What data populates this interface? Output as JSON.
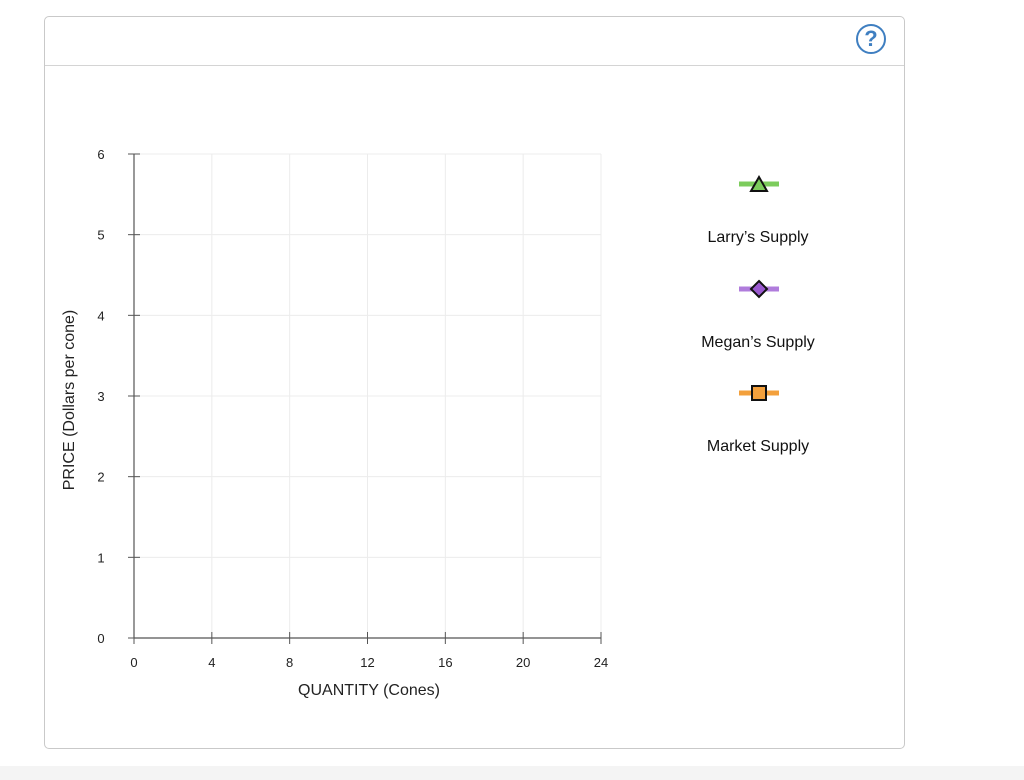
{
  "help_button": {
    "label": "?",
    "icon": "help-icon"
  },
  "chart_data": {
    "type": "line",
    "xlabel": "QUANTITY (Cones)",
    "ylabel": "PRICE (Dollars per cone)",
    "xlim": [
      0,
      24
    ],
    "ylim": [
      0,
      6
    ],
    "x_ticks": [
      0,
      4,
      8,
      12,
      16,
      20,
      24
    ],
    "y_ticks": [
      0,
      1,
      2,
      3,
      4,
      5,
      6
    ],
    "grid": true,
    "series": []
  },
  "legend": {
    "items": [
      {
        "name": "Larry’s Supply",
        "marker": "triangle",
        "line_color": "#7ccc5c",
        "marker_fill": "#7ccc5c",
        "icon": "triangle-marker-icon"
      },
      {
        "name": "Megan’s Supply",
        "marker": "diamond",
        "line_color": "#b07cdc",
        "marker_fill": "#9b59d0",
        "icon": "diamond-marker-icon"
      },
      {
        "name": "Market Supply",
        "marker": "square",
        "line_color": "#f3a03c",
        "marker_fill": "#f3a03c",
        "icon": "square-marker-icon"
      }
    ]
  }
}
